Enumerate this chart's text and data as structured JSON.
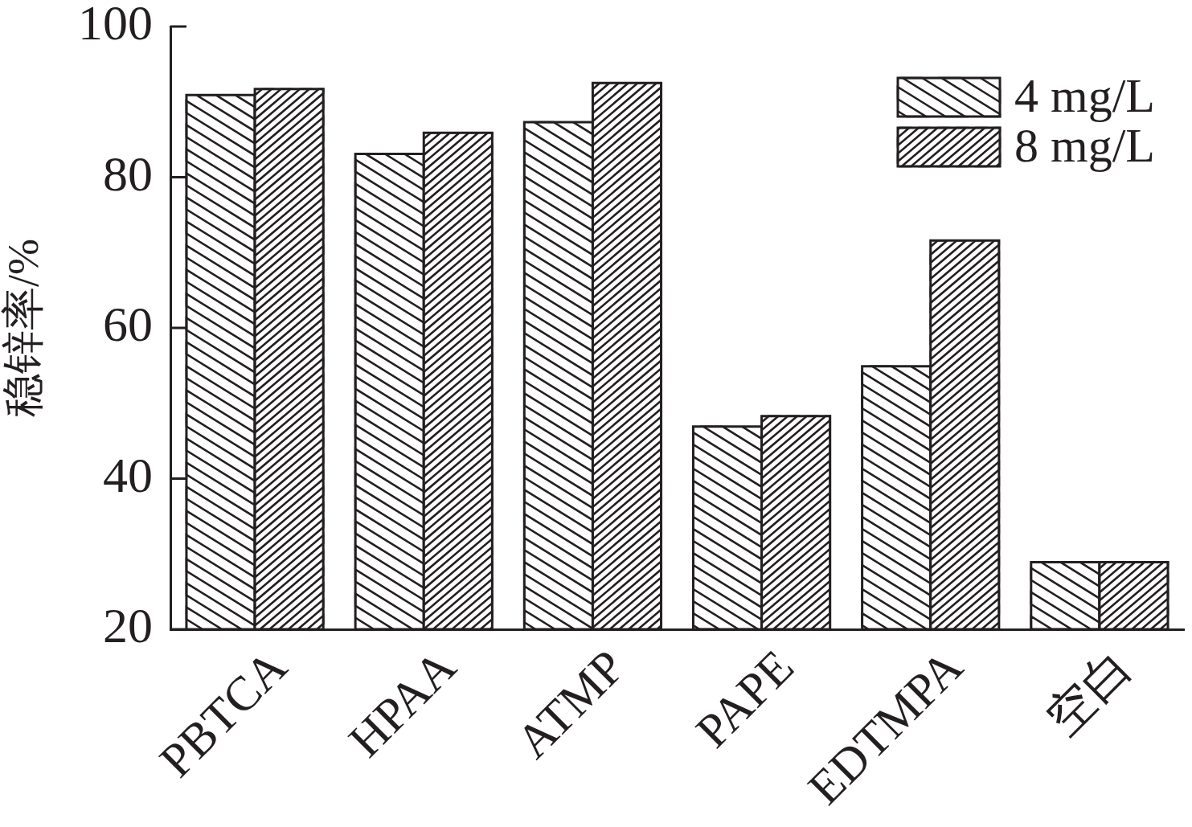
{
  "chart_data": {
    "type": "bar",
    "ylabel": "稳锌率/%",
    "categories": [
      "PBTCA",
      "HPAA",
      "ATMP",
      "PAPE",
      "EDTMPA",
      "空白"
    ],
    "series": [
      {
        "name": "4 mg/L",
        "color": "#231f20",
        "values": [
          90.9,
          83.1,
          87.3,
          46.9,
          54.9,
          28.9
        ]
      },
      {
        "name": "8 mg/L",
        "color": "#231f20",
        "values": [
          91.7,
          85.9,
          92.5,
          48.3,
          71.6,
          28.9
        ]
      }
    ],
    "ylim": [
      20,
      100
    ],
    "yticks": [
      20,
      40,
      60,
      80,
      100
    ],
    "legend": "top right"
  }
}
